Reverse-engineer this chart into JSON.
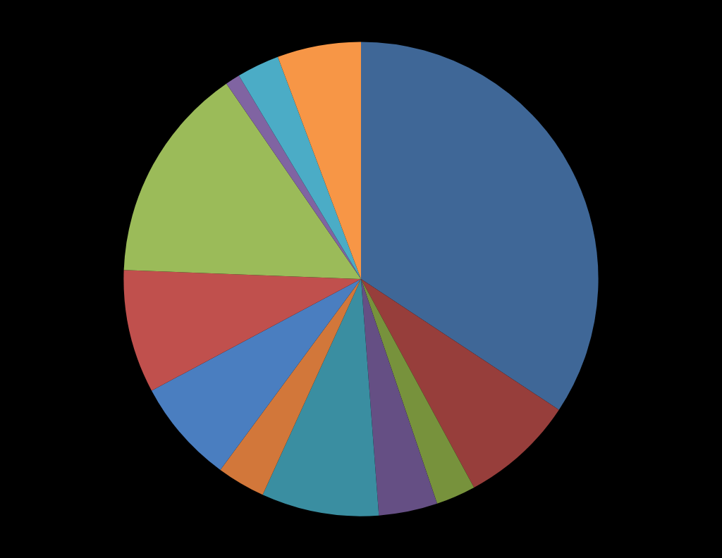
{
  "chart_data": {
    "type": "pie",
    "categories": [
      null,
      null,
      null,
      null,
      null,
      null,
      null,
      null,
      null,
      null,
      null,
      null
    ],
    "values": [
      34.3,
      7.8,
      2.7,
      4.0,
      8.0,
      3.3,
      7.1,
      8.4,
      14.8,
      1.0,
      2.9,
      5.7
    ],
    "colors": [
      "#3f6797",
      "#973e3b",
      "#77923c",
      "#654f84",
      "#3a8ea1",
      "#d2773a",
      "#4a7ec0",
      "#c0504d",
      "#9bbb59",
      "#8064a2",
      "#4bacc6",
      "#f79646"
    ]
  }
}
